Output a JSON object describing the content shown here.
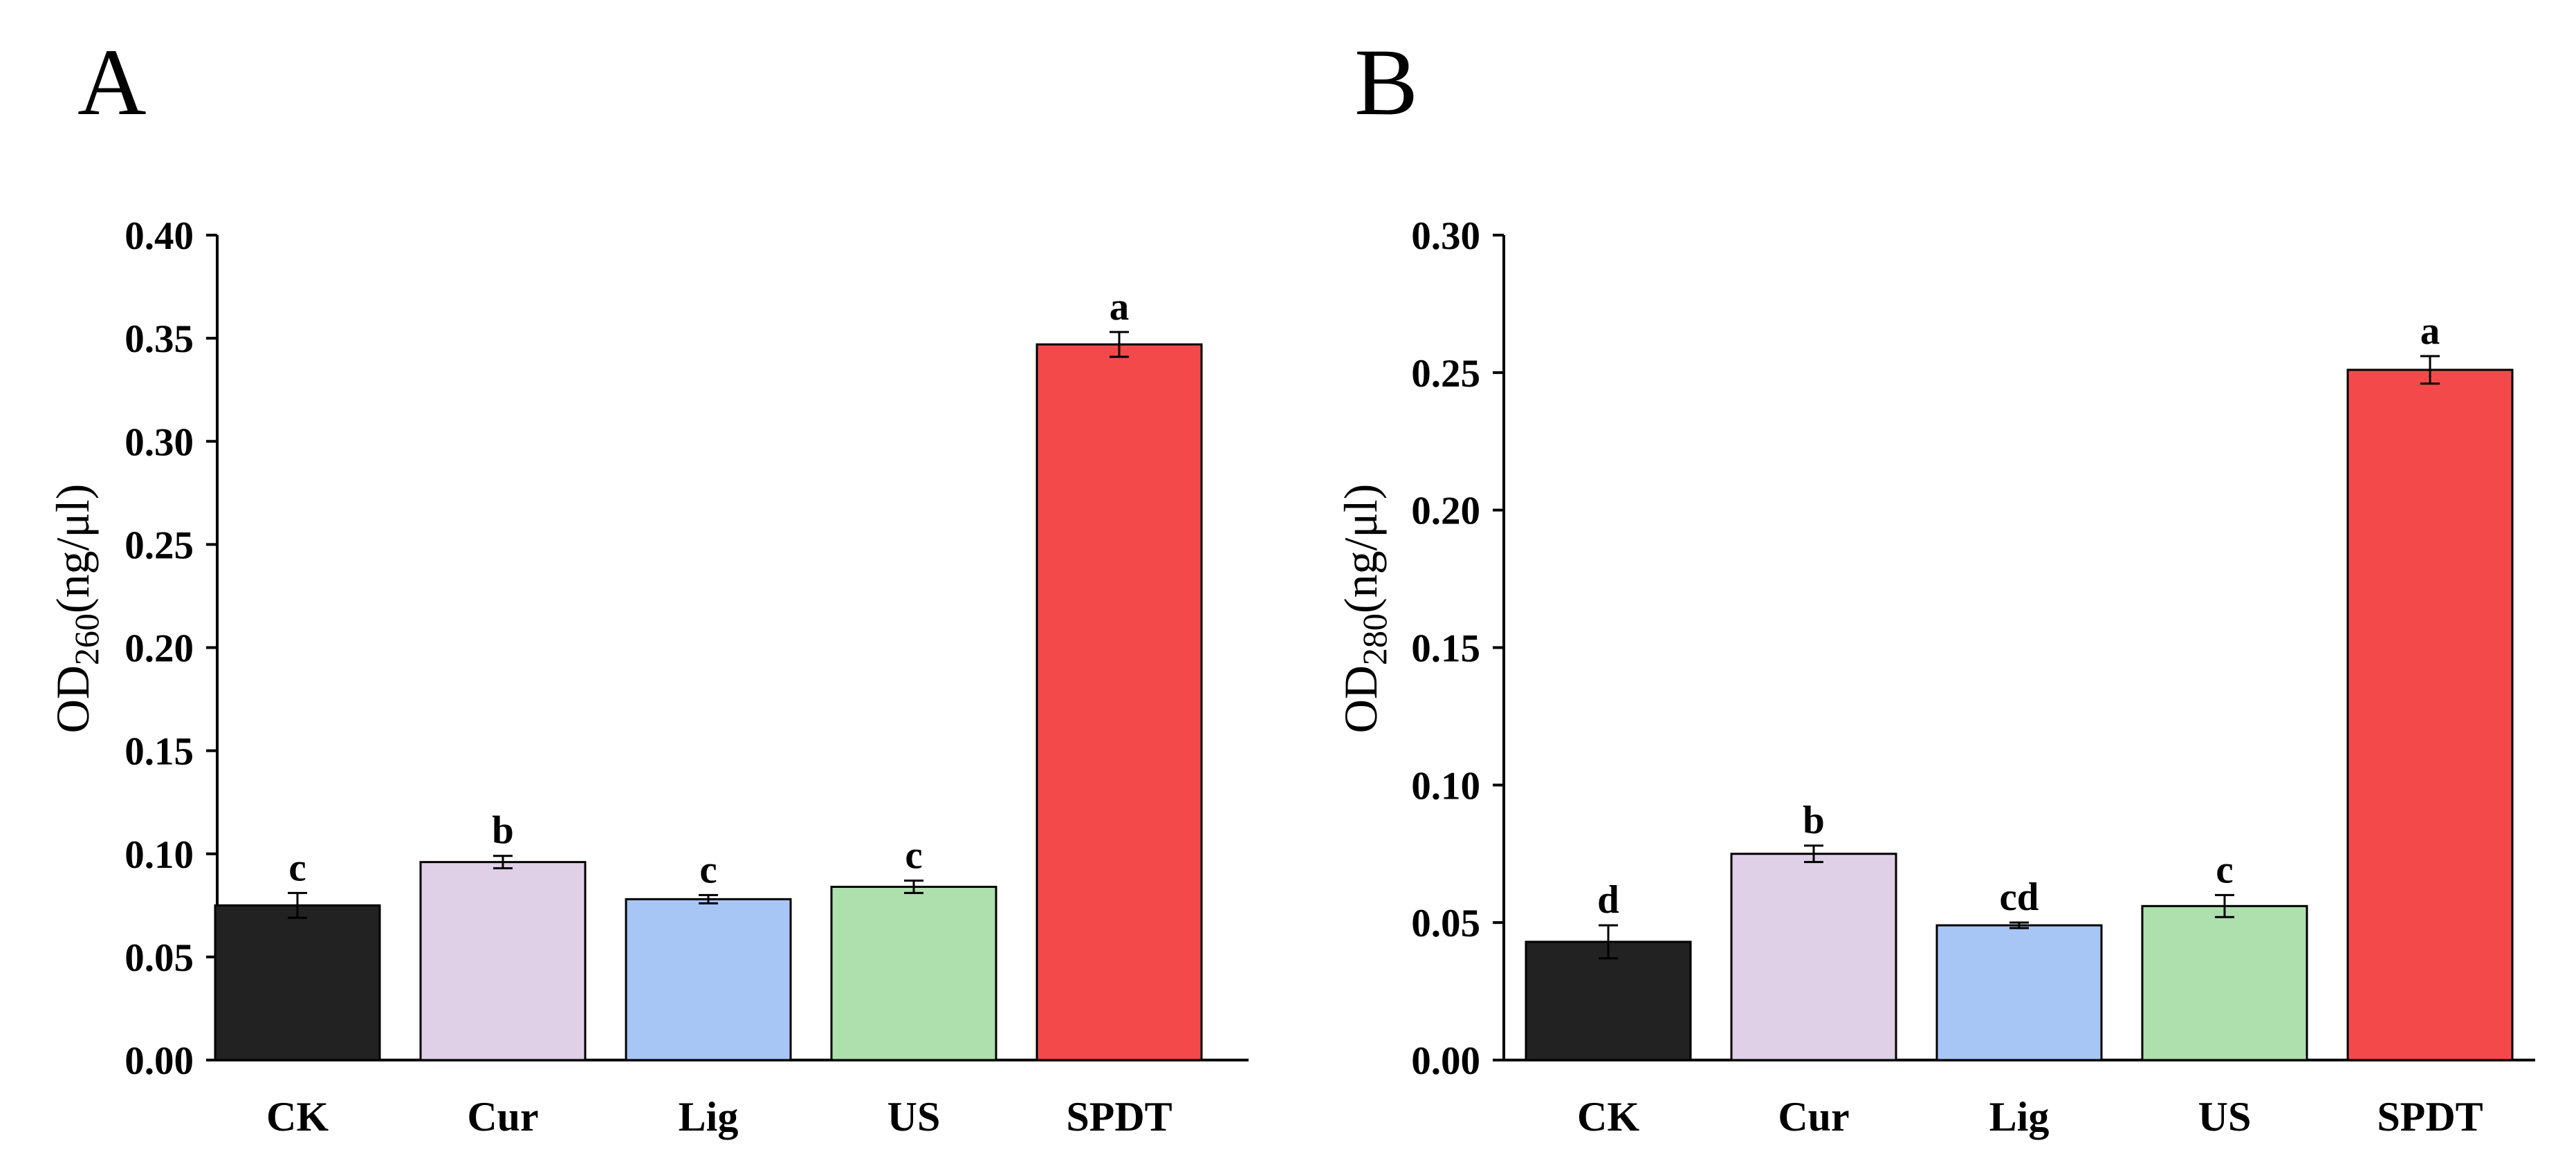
{
  "panels": [
    {
      "label": "A",
      "chart_data": {
        "type": "bar",
        "categories": [
          "CK",
          "Cur",
          "Lig",
          "US",
          "SPDT"
        ],
        "values": [
          0.075,
          0.096,
          0.078,
          0.084,
          0.347
        ],
        "errors": [
          0.006,
          0.003,
          0.002,
          0.003,
          0.006
        ],
        "significance": [
          "c",
          "b",
          "c",
          "c",
          "a"
        ],
        "colors": [
          "#222222",
          "#dfd0e8",
          "#a8c6f5",
          "#aee0ad",
          "#f4494b"
        ],
        "ylim": [
          0,
          0.4
        ],
        "yticks": [
          "0.00",
          "0.05",
          "0.10",
          "0.15",
          "0.20",
          "0.25",
          "0.30",
          "0.35",
          "0.40"
        ],
        "ylabel": {
          "main": "OD",
          "sub": "260",
          "unit": "(ng/μl)"
        },
        "xlabel": "",
        "grid": false
      }
    },
    {
      "label": "B",
      "chart_data": {
        "type": "bar",
        "categories": [
          "CK",
          "Cur",
          "Lig",
          "US",
          "SPDT"
        ],
        "values": [
          0.043,
          0.075,
          0.049,
          0.056,
          0.251
        ],
        "errors": [
          0.006,
          0.003,
          0.001,
          0.004,
          0.005
        ],
        "significance": [
          "d",
          "b",
          "cd",
          "c",
          "a"
        ],
        "colors": [
          "#222222",
          "#dfd0e8",
          "#a8c6f5",
          "#aee0ad",
          "#f4494b"
        ],
        "ylim": [
          0,
          0.3
        ],
        "yticks": [
          "0.00",
          "0.05",
          "0.10",
          "0.15",
          "0.20",
          "0.25",
          "0.30"
        ],
        "ylabel": {
          "main": "OD",
          "sub": "280",
          "unit": "(ng/μl)"
        },
        "xlabel": "",
        "grid": false
      }
    }
  ]
}
